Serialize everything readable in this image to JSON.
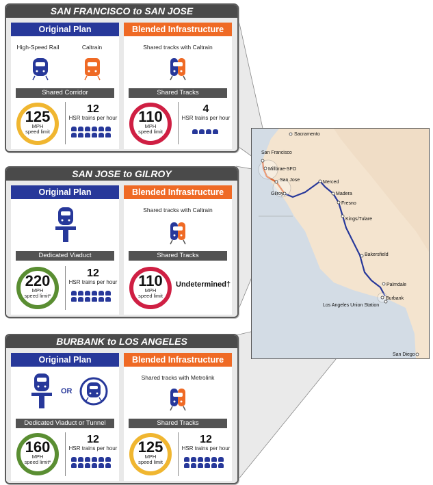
{
  "panels": [
    {
      "title": "SAN FRANCISCO to SAN JOSE",
      "left": {
        "header": "Original Plan",
        "label_a": "High-Speed Rail",
        "label_b": "Caltrain",
        "bar": "Shared Corridor",
        "speed": "125",
        "unit": "MPH",
        "limit": "speed limit",
        "trains": "12",
        "trains_label": "HSR trains per hour"
      },
      "right": {
        "header": "Blended Infrastructure",
        "sub": "Shared tracks with Caltrain",
        "bar": "Shared Tracks",
        "speed": "110",
        "unit": "MPH",
        "limit": "speed limit",
        "trains": "4",
        "trains_label": "HSR trains per hour"
      }
    },
    {
      "title": "SAN JOSE to GILROY",
      "left": {
        "header": "Original Plan",
        "bar": "Dedicated Viaduct",
        "speed": "220",
        "unit": "MPH",
        "limit": "speed limit*",
        "trains": "12",
        "trains_label": "HSR trains per hour"
      },
      "right": {
        "header": "Blended Infrastructure",
        "sub": "Shared tracks with Caltrain",
        "bar": "Shared Tracks",
        "speed": "110",
        "unit": "MPH",
        "limit": "speed limit",
        "status": "Undetermined†"
      }
    },
    {
      "title": "BURBANK to LOS ANGELES",
      "left": {
        "header": "Original Plan",
        "or": "OR",
        "bar": "Dedicated Viaduct or Tunnel",
        "speed": "160",
        "unit": "MPH",
        "limit": "speed limit*",
        "trains": "12",
        "trains_label": "HSR trains per hour"
      },
      "right": {
        "header": "Blended Infrastructure",
        "sub": "Shared tracks with Metrolink",
        "bar": "Shared Tracks",
        "speed": "125",
        "unit": "MPH",
        "limit": "speed limit",
        "trains": "12",
        "trains_label": "HSR trains per hour"
      }
    }
  ],
  "map": {
    "cities": [
      "Sacramento",
      "San Francisco",
      "Millbrae-SFO",
      "San Jose",
      "Gilroy",
      "Merced",
      "Madera",
      "Fresno",
      "Kings/Tulare",
      "Bakersfield",
      "Palmdale",
      "Burbank",
      "Los Angeles Union Station",
      "San Diego"
    ],
    "colors": {
      "land": "#f4e4cf",
      "sea": "#d3dce5",
      "route": "#27389a",
      "shared": "#ef6a25"
    }
  },
  "icons": {
    "hsr": "high-speed-train-icon",
    "caltrain": "commuter-train-icon",
    "blended": "blended-train-icon",
    "viaduct": "viaduct-train-icon",
    "tunnel": "tunnel-train-icon",
    "mini": "mini-train-icon"
  }
}
